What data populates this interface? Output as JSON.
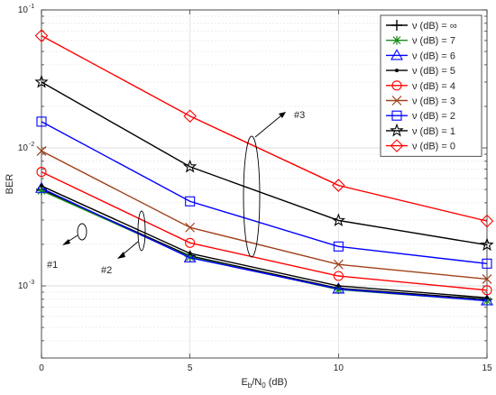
{
  "chart_data": {
    "type": "line",
    "xlabel": {
      "main": "E",
      "sub1": "b",
      "mid": "/N",
      "sub2": "0",
      "tail": " (dB)"
    },
    "ylabel": "BER",
    "x": [
      0,
      5,
      10,
      15
    ],
    "xlim": [
      0,
      15
    ],
    "ylim": [
      0.0003,
      0.1
    ],
    "yscale": "log",
    "grid": true,
    "xticks": [
      0,
      5,
      10,
      15
    ],
    "yticks": [
      {
        "base": "10",
        "exp": "-3",
        "value": 0.001
      },
      {
        "base": "10",
        "exp": "-2",
        "value": 0.01
      },
      {
        "base": "10",
        "exp": "-1",
        "value": 0.1
      }
    ],
    "legend_position": "top-right",
    "series": [
      {
        "name": "ν (dB) = ∞",
        "color": "#000000",
        "marker": "plus",
        "values": [
          0.005,
          0.00165,
          0.00096,
          0.0008
        ]
      },
      {
        "name": "ν (dB) = 7",
        "color": "#1a8c1a",
        "marker": "asterisk",
        "values": [
          0.0049,
          0.00162,
          0.00094,
          0.00078
        ]
      },
      {
        "name": "ν (dB) = 6",
        "color": "#0000ff",
        "marker": "triangle",
        "values": [
          0.0051,
          0.0016,
          0.00095,
          0.00078
        ]
      },
      {
        "name": "ν (dB) = 5",
        "color": "#000000",
        "marker": "dot",
        "values": [
          0.0053,
          0.00172,
          0.001,
          0.00082
        ]
      },
      {
        "name": "ν (dB) = 4",
        "color": "#ff0000",
        "marker": "circle",
        "values": [
          0.0067,
          0.00205,
          0.00118,
          0.00093
        ]
      },
      {
        "name": "ν (dB) = 3",
        "color": "#a0401a",
        "marker": "x",
        "values": [
          0.0095,
          0.00265,
          0.00143,
          0.00112
        ]
      },
      {
        "name": "ν (dB) = 2",
        "color": "#0000ff",
        "marker": "square",
        "values": [
          0.0155,
          0.0041,
          0.00193,
          0.00145
        ]
      },
      {
        "name": "ν (dB) = 1",
        "color": "#000000",
        "marker": "star",
        "values": [
          0.03,
          0.0073,
          0.00298,
          0.00198
        ]
      },
      {
        "name": "ν (dB) = 0",
        "color": "#ff0000",
        "marker": "diamond",
        "values": [
          0.065,
          0.017,
          0.00535,
          0.00295
        ]
      }
    ],
    "annotations": [
      "#1",
      "#2",
      "#3"
    ]
  }
}
